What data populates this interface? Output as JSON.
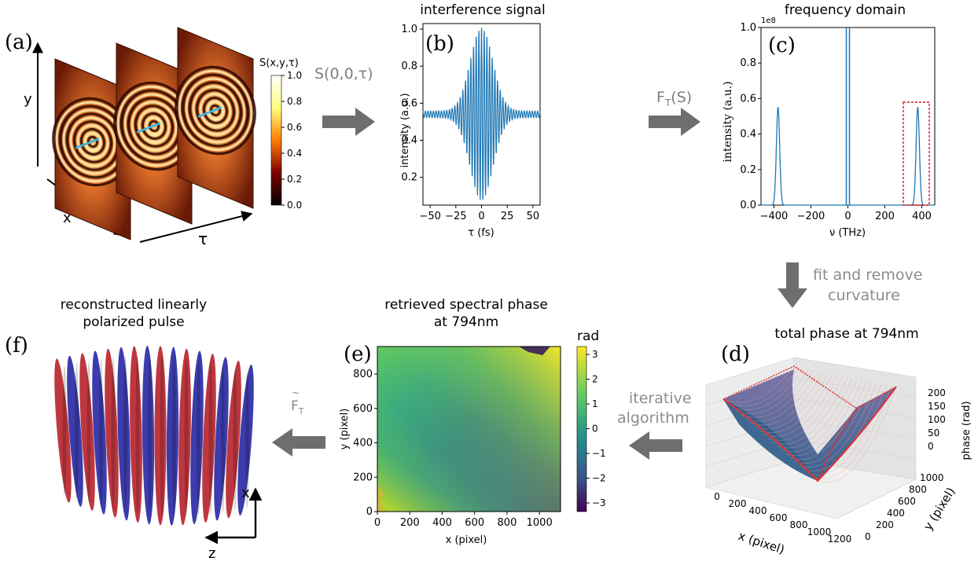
{
  "colors": {
    "signal": "#1f77b4",
    "arrow": "#6e6e6e",
    "note": "#8c8c8c",
    "pulse_red": "#b8262f",
    "pulse_blue": "#2b2ba6",
    "box_red": "#e0141e",
    "surface_edge": "#e03030"
  },
  "panel_a": {
    "label": "(a)",
    "axis_y": "y",
    "axis_x": "x",
    "axis_tau": "τ",
    "colorbar_title": "S(x,y,τ)",
    "colorbar_ticks": [
      "1.0",
      "0.8",
      "0.6",
      "0.4",
      "0.2",
      "0.0"
    ],
    "colormap": "afmhot",
    "frames": 3
  },
  "arrow_ab": {
    "label_main": "S(0,0,τ)"
  },
  "panel_b": {
    "title": "interference signal",
    "label": "(b)",
    "ylabel": "intensity (a.u.)",
    "xlabel": "τ (fs)",
    "xticks": [
      "−50",
      "−25",
      "0",
      "25",
      "50"
    ],
    "yticks": [
      "1.0",
      "0.8",
      "0.6",
      "0.4",
      "0.2"
    ]
  },
  "arrow_bc": {
    "label_F": "F",
    "label_sub": "T",
    "label_rest": "(S)"
  },
  "panel_c": {
    "title": "frequency domain",
    "label": "(c)",
    "ylabel": "intensity (a.u.)",
    "xlabel": "ν (THz)",
    "offset": "1e8",
    "xticks": [
      "−400",
      "−200",
      "0",
      "200",
      "400"
    ],
    "yticks": [
      "1.0",
      "0.8",
      "0.6",
      "0.4",
      "0.2",
      "0.0"
    ]
  },
  "arrow_cd": {
    "line1": "fit and remove",
    "line2": "curvature"
  },
  "panel_d": {
    "title": "total phase at 794nm",
    "label": "(d)",
    "zlabel": "phase (rad)",
    "xlabel": "x (pixel)",
    "ylabel": "y (pixel)",
    "zticks": [
      "200",
      "150",
      "100",
      "50",
      "0"
    ],
    "xticks": [
      "0",
      "200",
      "400",
      "600",
      "800",
      "1000",
      "1200"
    ],
    "yticks": [
      "1000",
      "800",
      "600",
      "400",
      "200",
      "0"
    ]
  },
  "arrow_de": {
    "line1": "iterative",
    "line2": "algorithm"
  },
  "panel_e": {
    "title_line1": "retrieved spectral phase",
    "title_line2": "at 794nm",
    "label": "(e)",
    "colorbar_title": "rad",
    "colorbar_ticks": [
      "3",
      "2",
      "1",
      "0",
      "−1",
      "−2",
      "−3"
    ],
    "ylabel": "y (pixel)",
    "xlabel": "x (pixel)",
    "xticks": [
      "0",
      "200",
      "400",
      "600",
      "800",
      "1000"
    ],
    "yticks": [
      "800",
      "600",
      "400",
      "200",
      "0"
    ],
    "colormap": "viridis"
  },
  "arrow_ef": {
    "label_F": "F",
    "label_tilde": "~",
    "label_sub": "T"
  },
  "panel_f": {
    "title_line1": "reconstructed linearly",
    "title_line2": "polarized pulse",
    "label": "(f)",
    "axis_x": "x",
    "axis_z": "z",
    "slices": 16
  },
  "chart_data": [
    {
      "type": "line",
      "title": "interference signal",
      "xlabel": "τ (fs)",
      "ylabel": "intensity (a.u.)",
      "xlim": [
        -57,
        57
      ],
      "ylim": [
        0.08,
        1.0
      ],
      "baseline": 0.54,
      "envelope_sigma_fs": 11,
      "peak": 1.0,
      "min": 0.09,
      "carrier_period_fs": 2.6
    },
    {
      "type": "line",
      "title": "frequency domain",
      "xlabel": "ν (THz)",
      "ylabel": "intensity (a.u.)",
      "xlim": [
        -470,
        470
      ],
      "ylim": [
        0,
        1.0
      ],
      "y_multiplier": "1e8",
      "peaks": [
        {
          "x": -378,
          "y": 0.55
        },
        {
          "x": 0,
          "y": 1.0
        },
        {
          "x": 378,
          "y": 0.55
        }
      ]
    }
  ]
}
